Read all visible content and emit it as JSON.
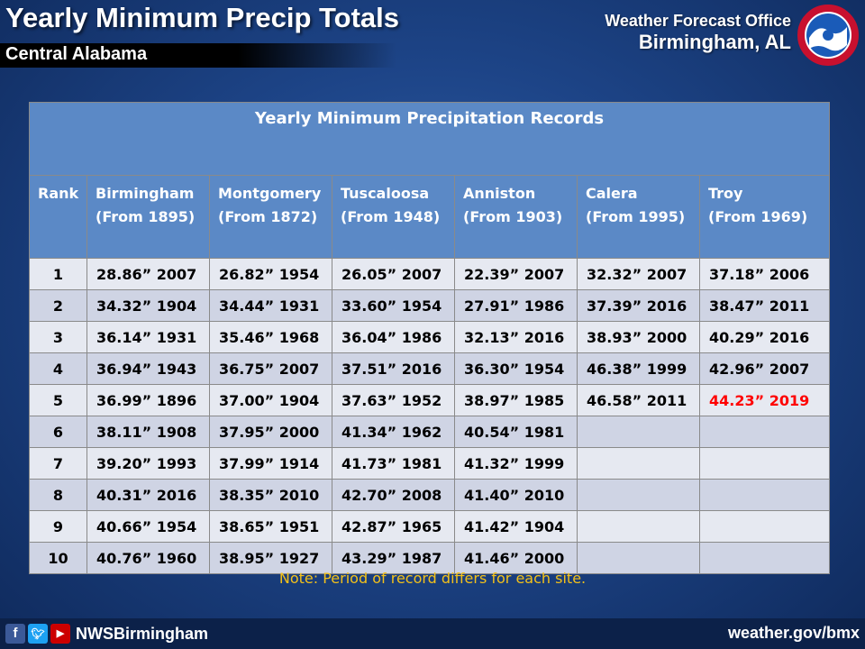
{
  "header": {
    "title": "Yearly Minimum Precip Totals",
    "subtitle": "Central Alabama",
    "office_line1": "Weather Forecast Office",
    "office_line2": "Birmingham, AL",
    "logo_icon": "nws-logo-icon"
  },
  "chart_data": {
    "type": "table",
    "title": "Yearly Minimum Precipitation Records",
    "columns": [
      {
        "name": "Rank",
        "sub": ""
      },
      {
        "name": "Birmingham",
        "sub": "(From 1895)"
      },
      {
        "name": "Montgomery",
        "sub": "(From 1872)"
      },
      {
        "name": "Tuscaloosa",
        "sub": "(From 1948)"
      },
      {
        "name": "Anniston",
        "sub": "(From 1903)"
      },
      {
        "name": "Calera",
        "sub": "(From  1995)"
      },
      {
        "name": "Troy",
        "sub": "(From 1969)"
      }
    ],
    "rows": [
      [
        "1",
        "28.86”  2007",
        "26.82”  1954",
        "26.05”  2007",
        "22.39”  2007",
        "32.32”  2007",
        "37.18”  2006"
      ],
      [
        "2",
        "34.32”  1904",
        "34.44”  1931",
        "33.60”  1954",
        "27.91”  1986",
        "37.39”  2016",
        "38.47”  2011"
      ],
      [
        "3",
        "36.14”  1931",
        "35.46”  1968",
        "36.04”  1986",
        "32.13”  2016",
        "38.93”  2000",
        "40.29”  2016"
      ],
      [
        "4",
        "36.94”  1943",
        "36.75”  2007",
        "37.51”  2016",
        "36.30”  1954",
        "46.38”  1999",
        "42.96”  2007"
      ],
      [
        "5",
        "36.99”  1896",
        "37.00”  1904",
        "37.63”  1952",
        "38.97”  1985",
        "46.58”  2011",
        "44.23”  2019"
      ],
      [
        "6",
        "38.11”  1908",
        "37.95”  2000",
        "41.34”  1962",
        "40.54”  1981",
        "",
        ""
      ],
      [
        "7",
        "39.20”  1993",
        "37.99” 1914",
        "41.73”  1981",
        "41.32”  1999",
        "",
        ""
      ],
      [
        "8",
        "40.31”  2016",
        "38.35”  2010",
        "42.70”  2008",
        "41.40”  2010",
        "",
        ""
      ],
      [
        "9",
        "40.66”  1954",
        "38.65”  1951",
        "42.87”  1965",
        "41.42”  1904",
        "",
        ""
      ],
      [
        "10",
        "40.76”  1960",
        "38.95”  1927",
        "43.29”  1987",
        "41.46”  2000",
        "",
        ""
      ]
    ],
    "highlight": {
      "row": 4,
      "col": 6,
      "color": "#ff0000"
    }
  },
  "note": "Note: Period of record differs for each site.",
  "footer": {
    "social_icons": [
      "facebook-icon",
      "twitter-icon",
      "youtube-icon"
    ],
    "handle": "NWSBirmingham",
    "website": "weather.gov/bmx"
  }
}
